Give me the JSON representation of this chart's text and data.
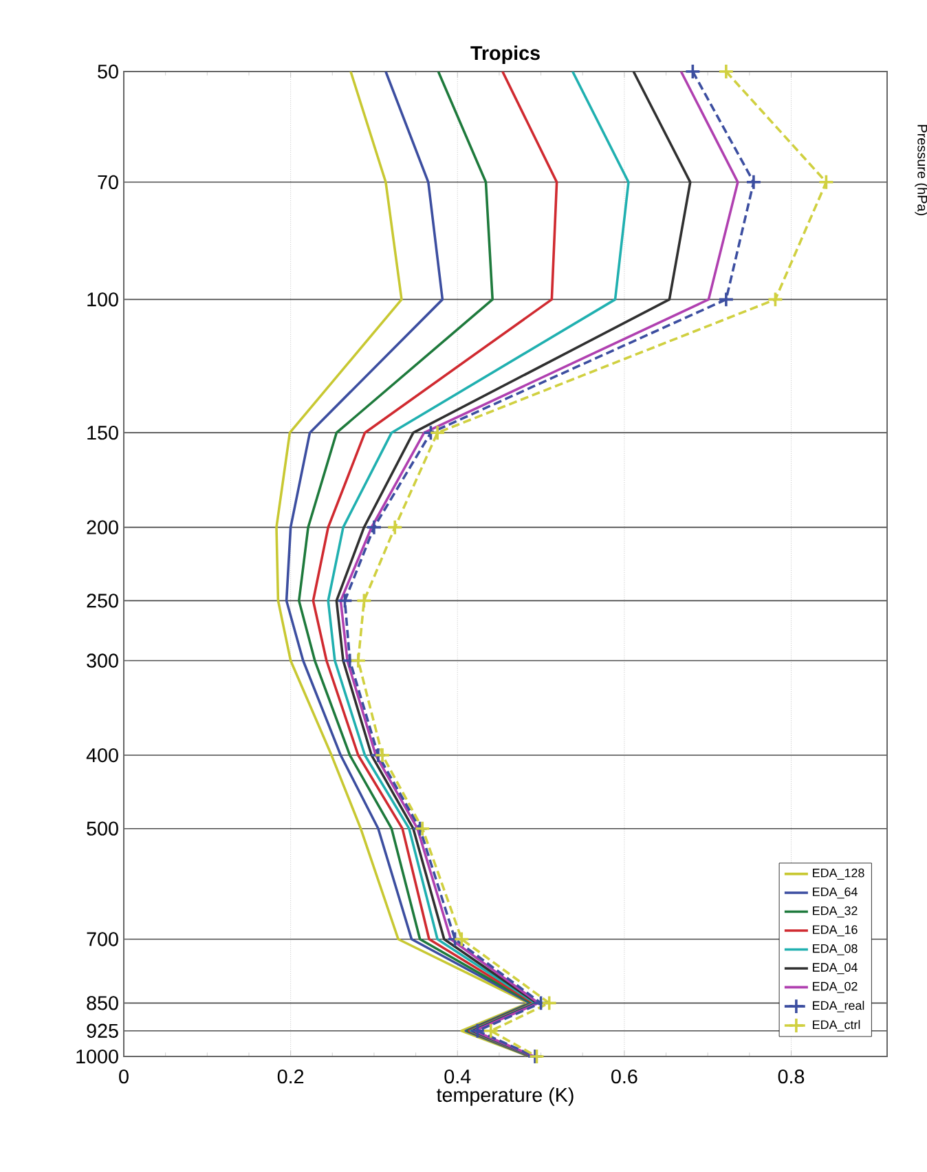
{
  "chart_data": {
    "type": "line",
    "title": "Tropics",
    "xlabel": "temperature (K)",
    "ylabel": "Pressure (hPa)",
    "x": [
      50,
      70,
      100,
      150,
      200,
      250,
      300,
      400,
      500,
      700,
      850,
      925,
      1000
    ],
    "orientation": "horizontal",
    "log": "y",
    "ylim": [
      1000,
      50
    ],
    "yticks": [
      50,
      70,
      100,
      150,
      200,
      250,
      300,
      400,
      500,
      700,
      850,
      925,
      1000
    ],
    "xlim": [
      0,
      0.915
    ],
    "xticks": [
      0,
      0.2,
      0.4,
      0.6,
      0.8
    ],
    "grid": true,
    "legend": "bottom right",
    "line_style": "solid",
    "marker": "none",
    "series": [
      {
        "name": "EDA_128",
        "color": "#c8c832",
        "values": [
          0.272,
          0.314,
          0.333,
          0.199,
          0.183,
          0.185,
          0.2,
          0.249,
          0.284,
          0.329,
          0.485,
          0.405,
          0.486
        ]
      },
      {
        "name": "EDA_64",
        "color": "#3c4ea0",
        "values": [
          0.314,
          0.365,
          0.382,
          0.223,
          0.2,
          0.195,
          0.215,
          0.26,
          0.305,
          0.345,
          0.487,
          0.41,
          0.487
        ]
      },
      {
        "name": "EDA_32",
        "color": "#1e7a3c",
        "values": [
          0.377,
          0.434,
          0.442,
          0.255,
          0.221,
          0.21,
          0.229,
          0.271,
          0.321,
          0.355,
          0.489,
          0.412,
          0.488
        ]
      },
      {
        "name": "EDA_16",
        "color": "#d02a30",
        "values": [
          0.454,
          0.519,
          0.513,
          0.289,
          0.245,
          0.227,
          0.243,
          0.281,
          0.334,
          0.366,
          0.491,
          0.414,
          0.489
        ]
      },
      {
        "name": "EDA_08",
        "color": "#20b0b0",
        "values": [
          0.538,
          0.605,
          0.589,
          0.321,
          0.263,
          0.245,
          0.253,
          0.289,
          0.342,
          0.376,
          0.493,
          0.416,
          0.49
        ]
      },
      {
        "name": "EDA_04",
        "color": "#303030",
        "values": [
          0.611,
          0.679,
          0.654,
          0.347,
          0.288,
          0.255,
          0.263,
          0.297,
          0.347,
          0.384,
          0.495,
          0.418,
          0.491
        ]
      },
      {
        "name": "EDA_02",
        "color": "#b040b0",
        "values": [
          0.668,
          0.736,
          0.701,
          0.36,
          0.297,
          0.26,
          0.268,
          0.302,
          0.352,
          0.392,
          0.497,
          0.42,
          0.492
        ]
      },
      {
        "name": "EDA_real",
        "color": "#3c4ea0",
        "line_style": "dashed",
        "marker": "cross",
        "values": [
          0.682,
          0.755,
          0.722,
          0.368,
          0.3,
          0.265,
          0.271,
          0.305,
          0.355,
          0.397,
          0.5,
          0.424,
          0.493
        ]
      },
      {
        "name": "EDA_ctrl",
        "color": "#d0d040",
        "line_style": "dashed",
        "marker": "cross",
        "values": [
          0.722,
          0.842,
          0.781,
          0.376,
          0.325,
          0.288,
          0.281,
          0.31,
          0.358,
          0.405,
          0.51,
          0.44,
          0.495
        ]
      }
    ]
  }
}
